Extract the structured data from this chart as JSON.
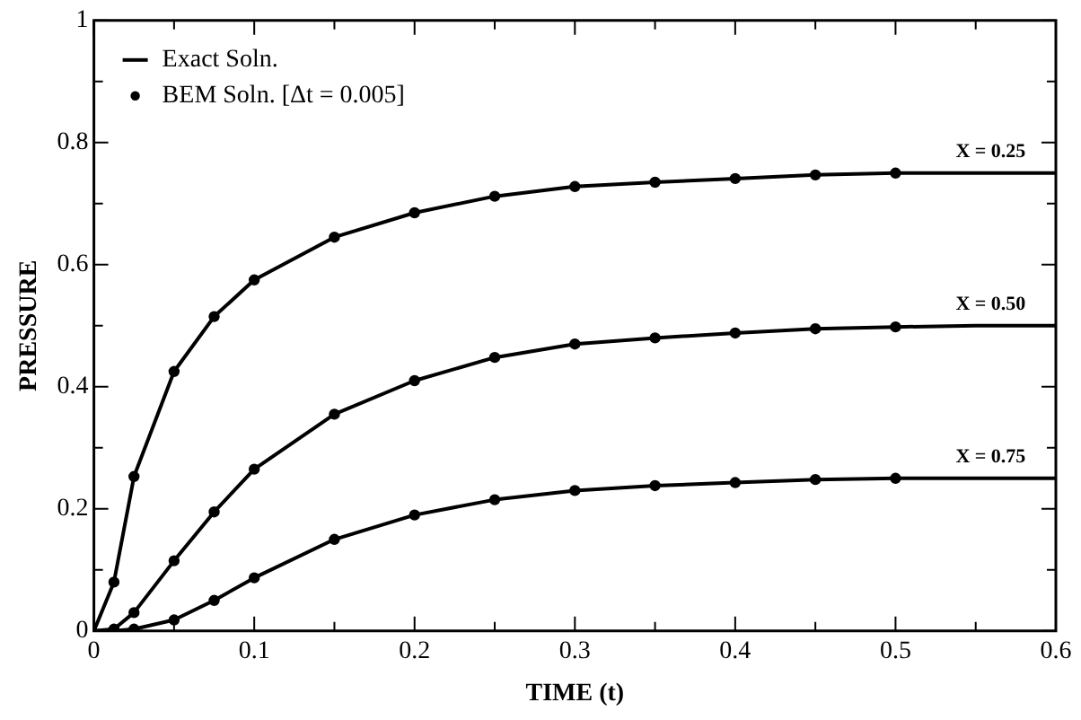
{
  "chart_data": {
    "type": "line",
    "xlabel": "TIME (t)",
    "ylabel": "PRESSURE",
    "xlim": [
      0,
      0.6
    ],
    "ylim": [
      0,
      1
    ],
    "xticks": [
      0,
      {
        "value": 0.05,
        "label": null
      },
      0.1,
      {
        "value": 0.15,
        "label": null
      },
      0.2,
      {
        "value": 0.25,
        "label": null
      },
      0.3,
      {
        "value": 0.35,
        "label": null
      },
      0.4,
      {
        "value": 0.45,
        "label": null
      },
      0.5,
      {
        "value": 0.55,
        "label": null
      },
      0.6
    ],
    "yticks": [
      0,
      {
        "value": 0.1,
        "label": null
      },
      0.2,
      {
        "value": 0.3,
        "label": null
      },
      0.4,
      {
        "value": 0.5,
        "label": null
      },
      0.6,
      {
        "value": 0.7,
        "label": null
      },
      0.8,
      {
        "value": 0.9,
        "label": null
      },
      1
    ],
    "grid": false,
    "legend": "top left",
    "series": [
      {
        "name": "Exact Soln.",
        "marker": "none",
        "line_style": "solid",
        "color": "#000000",
        "x": [
          0,
          0.0125,
          0.025,
          0.05,
          0.075,
          0.1,
          0.15,
          0.2,
          0.25,
          0.3,
          0.35,
          0.4,
          0.45,
          0.5,
          0.55,
          0.6
        ],
        "values": [
          0,
          0.08,
          0.253,
          0.425,
          0.515,
          0.575,
          0.645,
          0.685,
          0.712,
          0.728,
          0.735,
          0.741,
          0.747,
          0.75,
          0.75,
          0.75
        ]
      },
      {
        "marker": "none",
        "line_style": "solid",
        "color": "#000000",
        "x": [
          0,
          0.0125,
          0.025,
          0.05,
          0.075,
          0.1,
          0.15,
          0.2,
          0.25,
          0.3,
          0.35,
          0.4,
          0.45,
          0.5,
          0.55,
          0.6
        ],
        "values": [
          0,
          0.003,
          0.03,
          0.115,
          0.195,
          0.265,
          0.355,
          0.41,
          0.448,
          0.47,
          0.48,
          0.488,
          0.495,
          0.498,
          0.5,
          0.5
        ]
      },
      {
        "marker": "none",
        "line_style": "solid",
        "color": "#000000",
        "x": [
          0,
          0.0125,
          0.025,
          0.05,
          0.075,
          0.1,
          0.15,
          0.2,
          0.25,
          0.3,
          0.35,
          0.4,
          0.45,
          0.5,
          0.55,
          0.6
        ],
        "values": [
          0,
          0,
          0.003,
          0.018,
          0.05,
          0.087,
          0.15,
          0.19,
          0.215,
          0.23,
          0.238,
          0.243,
          0.248,
          0.25,
          0.25,
          0.25
        ]
      },
      {
        "name": "BEM Soln. [Δt = 0.005]",
        "type": "scatter",
        "marker": "circle",
        "color": "#000000",
        "x": [
          0.0125,
          0.025,
          0.05,
          0.075,
          0.1,
          0.15,
          0.2,
          0.25,
          0.3,
          0.35,
          0.4,
          0.45,
          0.5
        ],
        "values": [
          0.08,
          0.253,
          0.425,
          0.515,
          0.575,
          0.645,
          0.685,
          0.712,
          0.728,
          0.735,
          0.741,
          0.747,
          0.75
        ]
      },
      {
        "type": "scatter",
        "marker": "circle",
        "color": "#000000",
        "x": [
          0.0125,
          0.025,
          0.05,
          0.075,
          0.1,
          0.15,
          0.2,
          0.25,
          0.3,
          0.35,
          0.4,
          0.45,
          0.5
        ],
        "values": [
          0.003,
          0.03,
          0.115,
          0.195,
          0.265,
          0.355,
          0.41,
          0.448,
          0.47,
          0.48,
          0.488,
          0.495,
          0.498
        ]
      },
      {
        "type": "scatter",
        "marker": "circle",
        "color": "#000000",
        "x": [
          0.025,
          0.05,
          0.075,
          0.1,
          0.15,
          0.2,
          0.25,
          0.3,
          0.35,
          0.4,
          0.45,
          0.5
        ],
        "values": [
          0.003,
          0.018,
          0.05,
          0.087,
          0.15,
          0.19,
          0.215,
          0.23,
          0.238,
          0.243,
          0.248,
          0.25
        ]
      }
    ],
    "annotations": [
      "X = 0.25",
      "X = 0.50",
      "X = 0.75"
    ]
  }
}
